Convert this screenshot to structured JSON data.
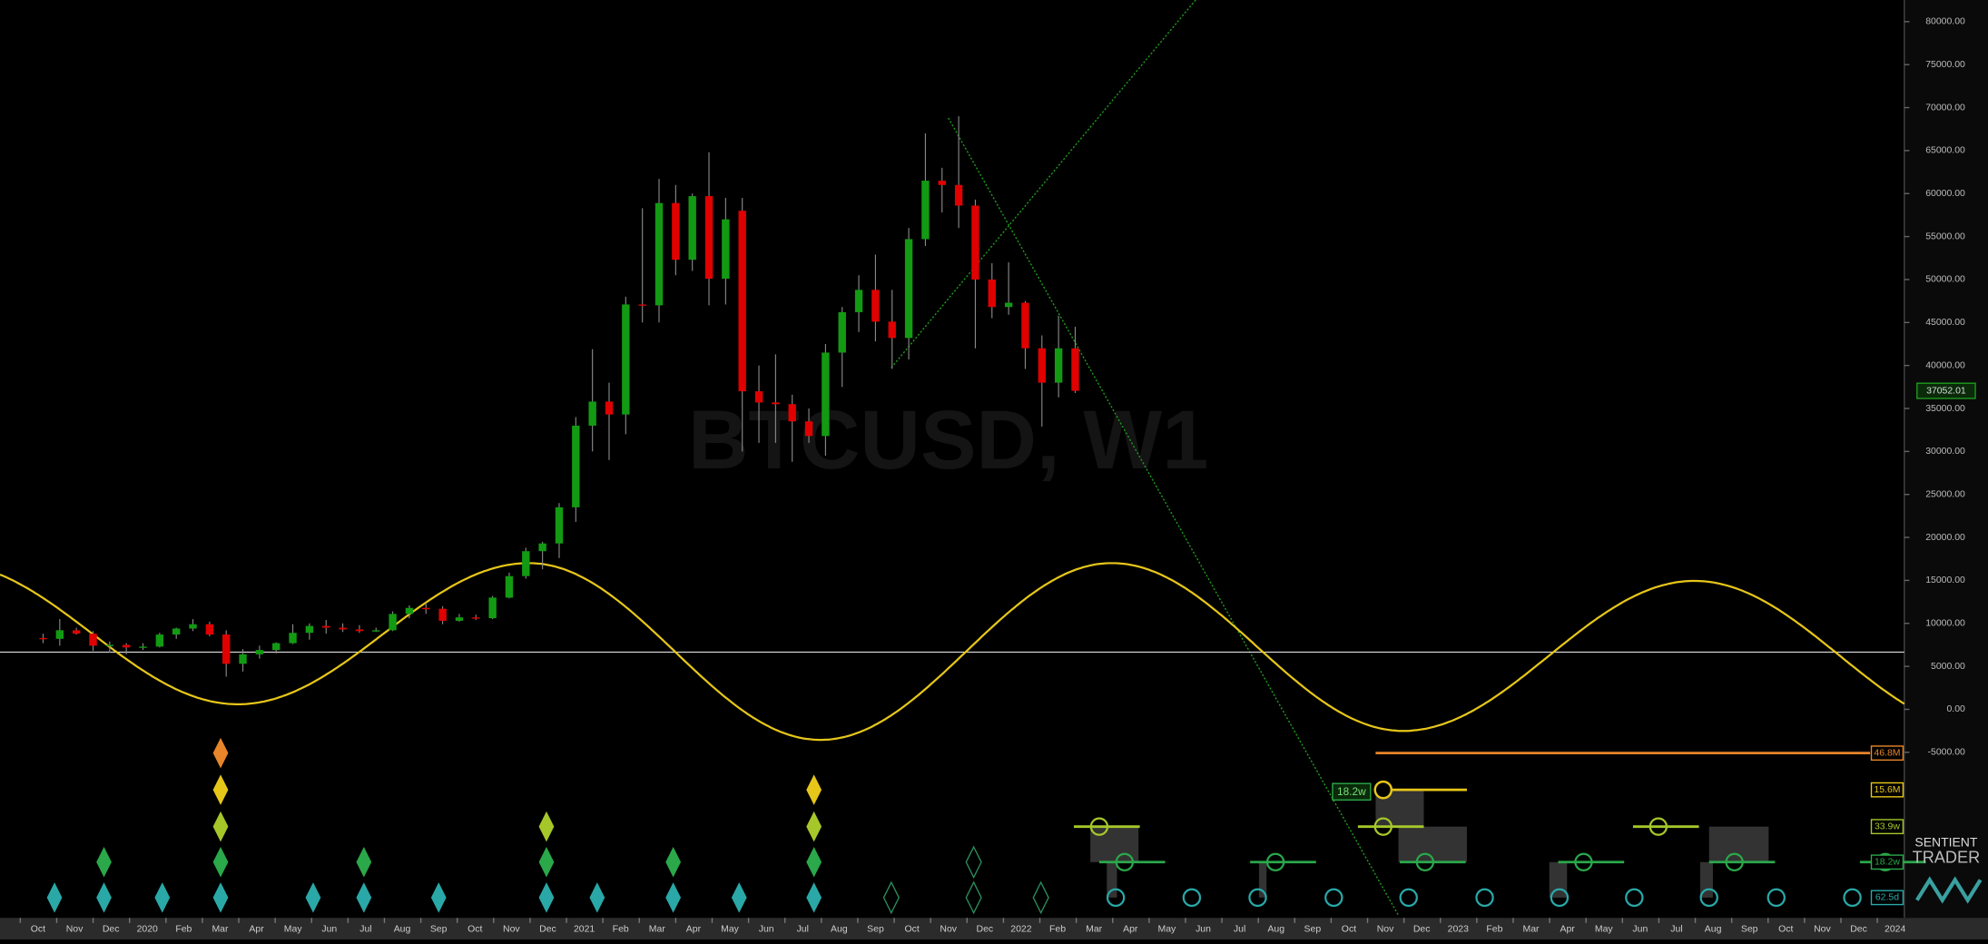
{
  "chart_data": {
    "type": "candlestick",
    "watermark": "BTCUSD, W1",
    "categories": [
      "Oct",
      "Nov",
      "Dec",
      "2020",
      "Feb",
      "Mar",
      "Apr",
      "May",
      "Jun",
      "Jul",
      "Aug",
      "Sep",
      "Oct",
      "Nov",
      "Dec",
      "2021",
      "Feb",
      "Mar",
      "Apr",
      "May",
      "Jun",
      "Jul",
      "Aug",
      "Sep",
      "Oct",
      "Nov",
      "Dec",
      "2022",
      "Feb",
      "Mar",
      "Apr",
      "May",
      "Jun",
      "Jul",
      "Aug",
      "Sep",
      "Oct",
      "Nov",
      "Dec",
      "2023",
      "Feb",
      "Mar",
      "Apr",
      "May",
      "Jun",
      "Jul",
      "Aug",
      "Sep",
      "Oct",
      "Nov",
      "Dec",
      "2024"
    ],
    "ylim": [
      -24260,
      82515
    ],
    "yticks": [
      {
        "value": 80000,
        "label": "80000.00"
      },
      {
        "value": 75000,
        "label": "75000.00"
      },
      {
        "value": 70000,
        "label": "70000.00"
      },
      {
        "value": 65000,
        "label": "65000.00"
      },
      {
        "value": 60000,
        "label": "60000.00"
      },
      {
        "value": 55000,
        "label": "55000.00"
      },
      {
        "value": 50000,
        "label": "50000.00"
      },
      {
        "value": 45000,
        "label": "45000.00"
      },
      {
        "value": 40000,
        "label": "40000.00"
      },
      {
        "value": 35000,
        "label": "35000.00"
      },
      {
        "value": 30000,
        "label": "30000.00"
      },
      {
        "value": 25000,
        "label": "25000.00"
      },
      {
        "value": 20000,
        "label": "20000.00"
      },
      {
        "value": 15000,
        "label": "15000.00"
      },
      {
        "value": 10000,
        "label": "10000.00"
      },
      {
        "value": 5000,
        "label": "5000.00"
      },
      {
        "value": 0,
        "label": "0.00"
      },
      {
        "value": -5000,
        "label": "-5000.00"
      }
    ],
    "up_color": "#139a13",
    "down_color": "#e00000",
    "candles": [
      [
        8300,
        8800,
        7700,
        8200
      ],
      [
        8200,
        10500,
        7400,
        9200
      ],
      [
        9200,
        9500,
        8700,
        8800
      ],
      [
        8800,
        9100,
        6800,
        7400
      ],
      [
        7400,
        7900,
        6600,
        7500
      ],
      [
        7500,
        7700,
        6400,
        7200
      ],
      [
        7200,
        7700,
        6900,
        7300
      ],
      [
        7300,
        8900,
        7200,
        8700
      ],
      [
        8700,
        9500,
        8200,
        9400
      ],
      [
        9400,
        10500,
        9100,
        9900
      ],
      [
        9900,
        10200,
        8500,
        8700
      ],
      [
        8700,
        9200,
        3800,
        5300
      ],
      [
        5300,
        7000,
        4400,
        6400
      ],
      [
        6400,
        7400,
        5900,
        6900
      ],
      [
        6900,
        7800,
        6500,
        7700
      ],
      [
        7700,
        9900,
        7600,
        8900
      ],
      [
        8900,
        10000,
        8100,
        9700
      ],
      [
        9700,
        10400,
        8800,
        9500
      ],
      [
        9500,
        10000,
        9000,
        9300
      ],
      [
        9300,
        9800,
        8900,
        9100
      ],
      [
        9100,
        9500,
        9000,
        9200
      ],
      [
        9200,
        11400,
        9100,
        11100
      ],
      [
        11100,
        12100,
        10600,
        11800
      ],
      [
        11800,
        12400,
        11100,
        11700
      ],
      [
        11700,
        12000,
        9900,
        10300
      ],
      [
        10300,
        11100,
        10200,
        10700
      ],
      [
        10700,
        11000,
        10400,
        10600
      ],
      [
        10600,
        13200,
        10500,
        13000
      ],
      [
        13000,
        15900,
        12900,
        15500
      ],
      [
        15500,
        18800,
        15200,
        18400
      ],
      [
        18400,
        19500,
        16300,
        19300
      ],
      [
        19300,
        24000,
        17600,
        23500
      ],
      [
        23500,
        34000,
        21800,
        33000
      ],
      [
        33000,
        41900,
        30000,
        35800
      ],
      [
        35800,
        38000,
        29000,
        34300
      ],
      [
        34300,
        48000,
        32000,
        47100
      ],
      [
        47100,
        58300,
        45000,
        47000
      ],
      [
        47000,
        61700,
        45000,
        58900
      ],
      [
        58900,
        61000,
        50500,
        52300
      ],
      [
        52300,
        60000,
        51000,
        59700
      ],
      [
        59700,
        64800,
        47000,
        50100
      ],
      [
        50100,
        59500,
        47100,
        57000
      ],
      [
        58000,
        59500,
        30000,
        37000
      ],
      [
        37000,
        40000,
        31000,
        35700
      ],
      [
        35700,
        41300,
        31000,
        35500
      ],
      [
        35500,
        36600,
        28800,
        33500
      ],
      [
        33500,
        35000,
        31000,
        31800
      ],
      [
        31800,
        42500,
        29500,
        41500
      ],
      [
        41500,
        46800,
        37500,
        46200
      ],
      [
        46200,
        50500,
        43900,
        48800
      ],
      [
        48800,
        52900,
        42800,
        45100
      ],
      [
        45100,
        48800,
        39600,
        43200
      ],
      [
        43200,
        56000,
        40700,
        54700
      ],
      [
        54700,
        67000,
        53900,
        61500
      ],
      [
        61500,
        63000,
        57800,
        61000
      ],
      [
        61000,
        69000,
        56000,
        58600
      ],
      [
        58600,
        59300,
        42000,
        50000
      ],
      [
        50000,
        51900,
        45500,
        46800
      ],
      [
        46800,
        52000,
        45900,
        47300
      ],
      [
        47300,
        47500,
        39600,
        42000
      ],
      [
        42000,
        43500,
        32900,
        38000
      ],
      [
        38000,
        45800,
        36300,
        42000
      ],
      [
        42000,
        44500,
        36800,
        37052.01
      ]
    ],
    "last_price": 37052.01,
    "hline": 6660,
    "wave": {
      "color": "#e6c619",
      "points": [
        {
          "date": "2020-03",
          "value": 590
        },
        {
          "date": "2020-11",
          "value": 17010
        },
        {
          "date": "2021-07",
          "value": -3550
        },
        {
          "date": "2022-03",
          "value": 17010
        },
        {
          "date": "2022-11",
          "value": -2510
        },
        {
          "date": "2023-07",
          "value": 14940
        }
      ]
    },
    "cycle_labels": [
      {
        "label": "46.8M",
        "color": "#e8852a"
      },
      {
        "label": "15.6M",
        "color": "#e6c619"
      },
      {
        "label": "33.9w",
        "color": "#a6c72a"
      },
      {
        "label": "18.2w",
        "color": "#2aa84a"
      },
      {
        "label": "62.5d",
        "color": "#2aa8a8"
      }
    ],
    "cursor_label": "18.2w",
    "logo": [
      "SENTIENT",
      "TRADER"
    ]
  }
}
